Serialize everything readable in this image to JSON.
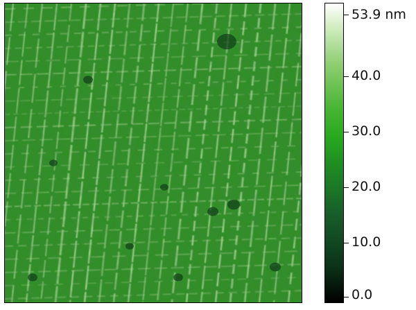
{
  "colorbar": {
    "max_label": "53.9 nm",
    "labels": [
      "40.0",
      "30.0",
      "20.0",
      "10.0",
      "0.0"
    ],
    "gradient_colors": [
      "#000000",
      "#17602a",
      "#27a81f",
      "#8fcf72",
      "#ffffff"
    ]
  },
  "image": {
    "base_color": "#2f8f24",
    "ridge_color": "#c8ecb2",
    "dark_color": "#0f3d1a"
  }
}
